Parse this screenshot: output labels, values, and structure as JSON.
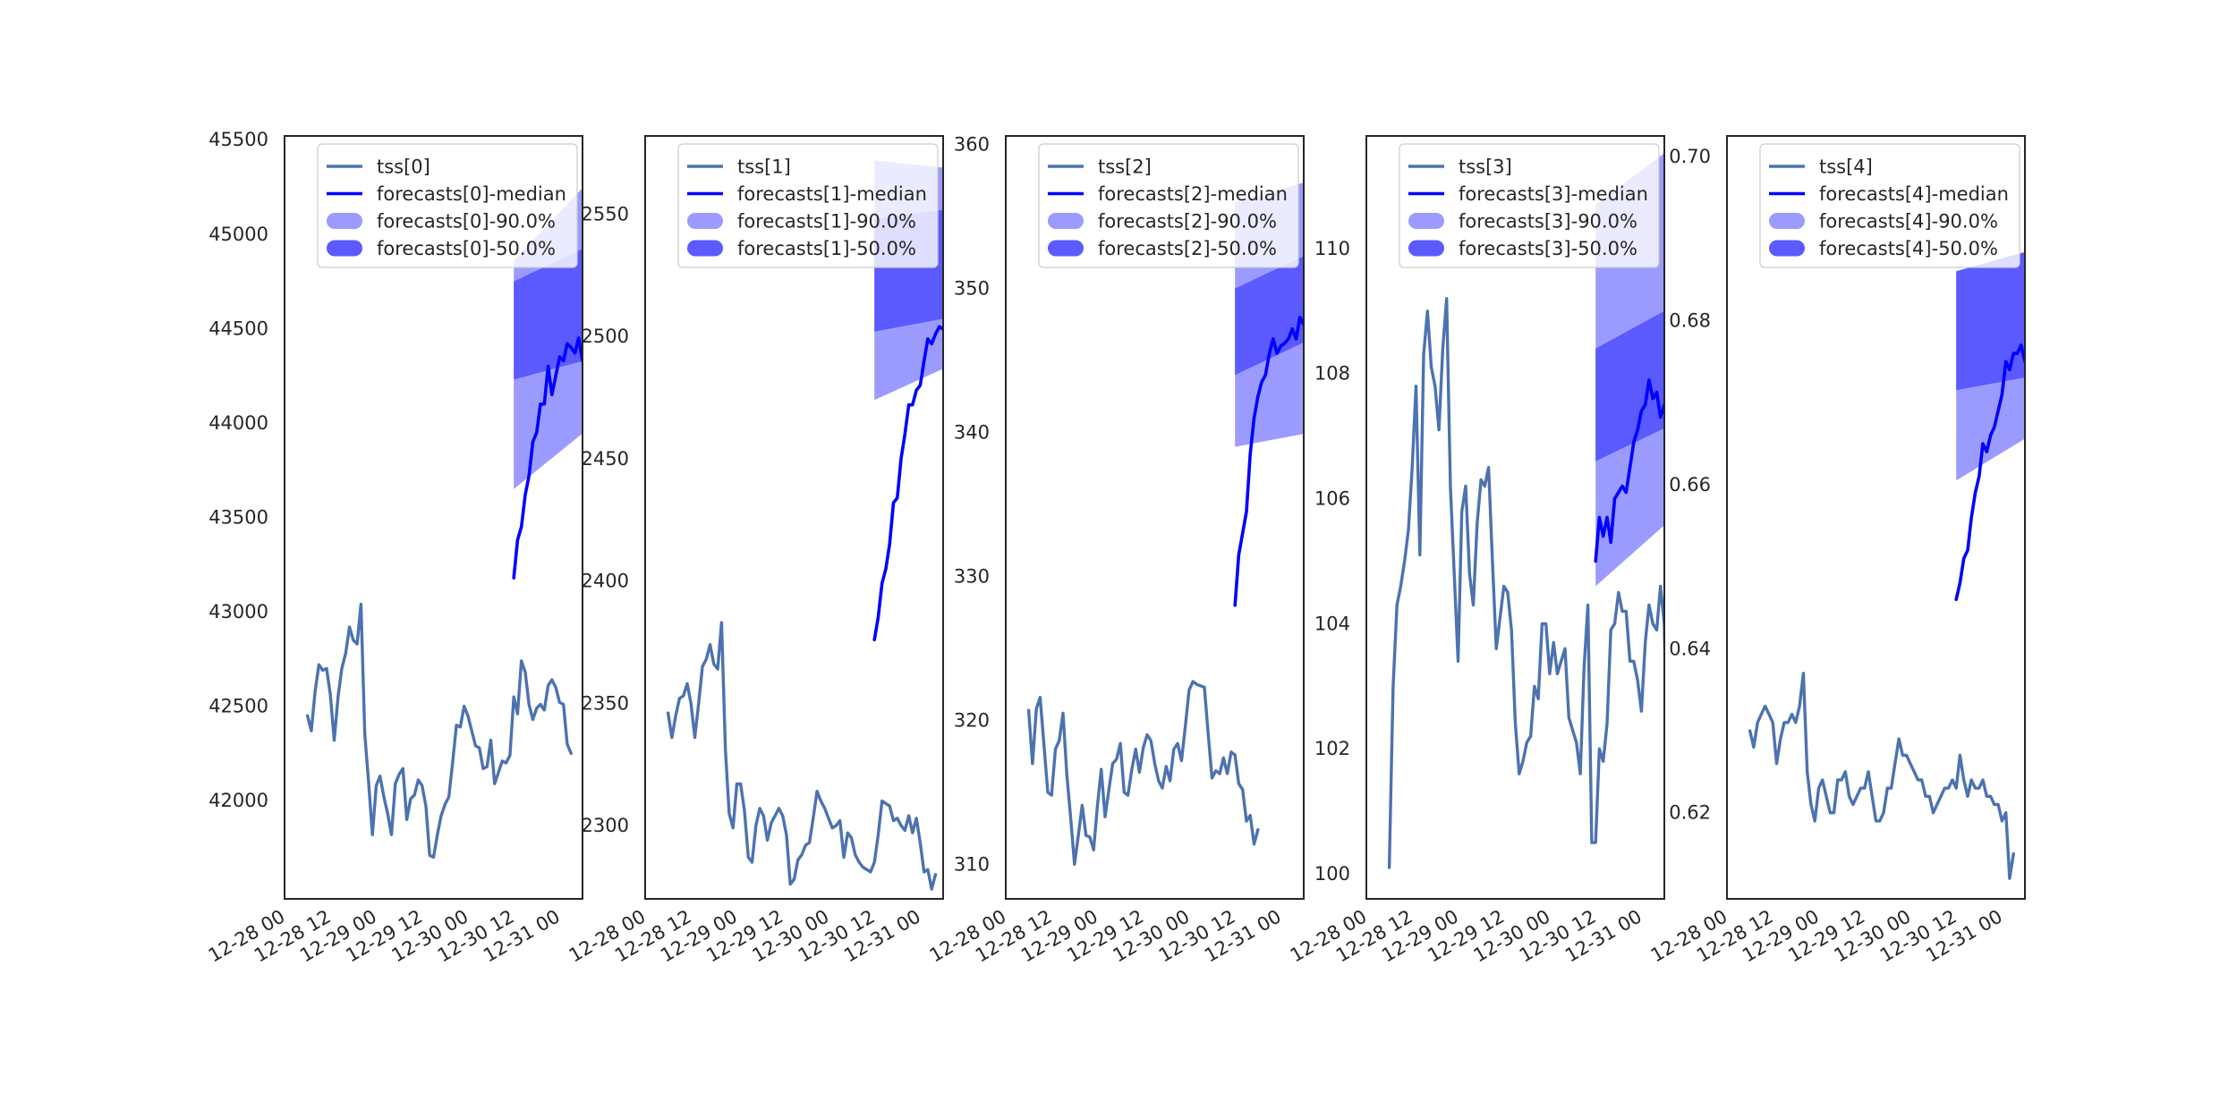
{
  "figure": {
    "title": "",
    "colors": {
      "history": "#4c72b0",
      "median": "#0000ff",
      "band_90": "#9b9bff",
      "band_50": "#5a5aff",
      "axes": "#262626",
      "tick_text": "#262626"
    }
  },
  "chart_data": [
    {
      "type": "line",
      "title": "",
      "xlabel": "",
      "ylabel": "",
      "grid": false,
      "legend_position": "top-center",
      "x_domain": [
        "2022-12-28 00:00",
        "2022-12-31 06:00"
      ],
      "x_ticks": [
        "12-28 00",
        "12-28 12",
        "12-29 00",
        "12-29 12",
        "12-30 00",
        "12-30 12",
        "12-31 00"
      ],
      "y_ticks": [
        42000,
        42500,
        43000,
        43500,
        44000,
        44500,
        45000,
        45500
      ],
      "ylim": [
        41480,
        45520
      ],
      "series": [
        {
          "name": "tss[0]",
          "x_start": "2022-12-28 06:00",
          "step_hours": 1,
          "values": [
            42450,
            42370,
            42580,
            42720,
            42690,
            42700,
            42560,
            42320,
            42550,
            42700,
            42780,
            42920,
            42850,
            42830,
            43040,
            42350,
            42100,
            41820,
            42080,
            42130,
            42020,
            41930,
            41820,
            42090,
            42140,
            42170,
            41900,
            42010,
            42030,
            42110,
            42080,
            41970,
            41710,
            41700,
            41820,
            41920,
            41980,
            42020,
            42200,
            42400,
            42390,
            42500,
            42450,
            42370,
            42290,
            42280,
            42170,
            42180,
            42320,
            42090,
            42150,
            42210,
            42200,
            42240,
            42550,
            42460,
            42740,
            42680,
            42510,
            42430,
            42490,
            42510,
            42480,
            42610,
            42640,
            42600,
            42520,
            42510,
            42300,
            42250
          ]
        },
        {
          "name": "forecasts[0]-median",
          "x_start": "2022-12-30 12:00",
          "step_hours": 1,
          "values": [
            43180,
            43380,
            43450,
            43620,
            43720,
            43900,
            43950,
            44100,
            44100,
            44300,
            44150,
            44250,
            44350,
            44330,
            44420,
            44400,
            44370,
            44450,
            44330,
            44440,
            44410,
            44560,
            44700
          ]
        }
      ],
      "bands": [
        {
          "name": "forecasts[0]-90.0%",
          "x_start": "2022-12-30 12:00",
          "x_end": "2022-12-31 10:00",
          "lower": [
            43650,
            44010
          ],
          "upper": [
            44860,
            45330
          ]
        },
        {
          "name": "forecasts[0]-50.0%",
          "x_start": "2022-12-30 12:00",
          "x_end": "2022-12-31 10:00",
          "lower": [
            44230,
            44350
          ],
          "upper": [
            44750,
            44960
          ]
        }
      ],
      "legend": [
        "tss[0]",
        "forecasts[0]-median",
        "forecasts[0]-90.0%",
        "forecasts[0]-50.0%"
      ]
    },
    {
      "type": "line",
      "title": "",
      "xlabel": "",
      "ylabel": "",
      "grid": false,
      "legend_position": "top-center",
      "x_domain": [
        "2022-12-28 00:00",
        "2022-12-31 06:00"
      ],
      "x_ticks": [
        "12-28 00",
        "12-28 12",
        "12-29 00",
        "12-29 12",
        "12-30 00",
        "12-30 12",
        "12-31 00"
      ],
      "y_ticks": [
        2300,
        2350,
        2400,
        2450,
        2500,
        2550
      ],
      "ylim": [
        2270,
        2582
      ],
      "series": [
        {
          "name": "tss[1]",
          "x_start": "2022-12-28 06:00",
          "step_hours": 1,
          "values": [
            2346,
            2336,
            2345,
            2352,
            2353,
            2358,
            2350,
            2336,
            2350,
            2365,
            2368,
            2374,
            2366,
            2364,
            2383,
            2331,
            2305,
            2299,
            2317,
            2317,
            2306,
            2287,
            2285,
            2300,
            2307,
            2304,
            2294,
            2301,
            2304,
            2307,
            2304,
            2296,
            2276,
            2278,
            2286,
            2288,
            2292,
            2293,
            2303,
            2314,
            2310,
            2307,
            2303,
            2299,
            2300,
            2302,
            2287,
            2297,
            2295,
            2288,
            2285,
            2283,
            2282,
            2281,
            2285,
            2296,
            2310,
            2309,
            2308,
            2302,
            2303,
            2300,
            2298,
            2304,
            2297,
            2303,
            2293,
            2281,
            2282,
            2274,
            2280
          ]
        },
        {
          "name": "forecasts[1]-median",
          "x_start": "2022-12-30 12:00",
          "step_hours": 1,
          "values": [
            2376,
            2385,
            2399,
            2405,
            2415,
            2432,
            2434,
            2450,
            2460,
            2472,
            2472,
            2478,
            2480,
            2490,
            2499,
            2497,
            2501,
            2504,
            2503,
            2510,
            2507,
            2513,
            2514,
            2517,
            2523
          ]
        }
      ],
      "bands": [
        {
          "name": "forecasts[1]-90.0%",
          "x_start": "2022-12-30 12:00",
          "x_end": "2022-12-31 12:00",
          "lower": [
            2474,
            2491
          ],
          "upper": [
            2572,
            2568
          ]
        },
        {
          "name": "forecasts[1]-50.0%",
          "x_start": "2022-12-30 12:00",
          "x_end": "2022-12-31 12:00",
          "lower": [
            2502,
            2509
          ],
          "upper": [
            2548,
            2553
          ]
        }
      ],
      "legend": [
        "tss[1]",
        "forecasts[1]-median",
        "forecasts[1]-90.0%",
        "forecasts[1]-50.0%"
      ]
    },
    {
      "type": "line",
      "title": "",
      "xlabel": "",
      "ylabel": "",
      "grid": false,
      "legend_position": "top-center",
      "x_domain": [
        "2022-12-28 00:00",
        "2022-12-31 06:00"
      ],
      "x_ticks": [
        "12-28 00",
        "12-28 12",
        "12-29 00",
        "12-29 12",
        "12-30 00",
        "12-30 12",
        "12-31 00"
      ],
      "y_ticks": [
        310,
        320,
        330,
        340,
        350,
        360
      ],
      "ylim": [
        307.6,
        360.6
      ],
      "series": [
        {
          "name": "tss[2]",
          "x_start": "2022-12-28 06:00",
          "step_hours": 1,
          "values": [
            320.7,
            317.0,
            320.8,
            321.6,
            318.3,
            315.0,
            314.8,
            318.0,
            318.6,
            320.5,
            316.2,
            313.2,
            310.0,
            312.0,
            314.1,
            312.0,
            311.9,
            311.0,
            314.1,
            316.6,
            313.3,
            315.2,
            317.0,
            317.3,
            318.4,
            315.0,
            314.8,
            316.6,
            318.0,
            316.4,
            318.1,
            319.0,
            318.6,
            317.0,
            315.8,
            315.3,
            316.8,
            315.8,
            318.0,
            318.4,
            317.2,
            319.6,
            322.1,
            322.7,
            322.5,
            322.4,
            322.3,
            319.0,
            316.0,
            316.5,
            316.3,
            317.4,
            316.3,
            317.8,
            317.6,
            315.6,
            315.2,
            313.0,
            313.4,
            311.4,
            312.4
          ]
        },
        {
          "name": "forecasts[2]-median",
          "x_start": "2022-12-30 12:00",
          "step_hours": 1,
          "values": [
            328.0,
            331.5,
            333.0,
            334.5,
            338.5,
            341.0,
            342.5,
            343.5,
            344.0,
            345.5,
            346.5,
            345.5,
            346.0,
            346.2,
            346.5,
            347.2,
            346.5,
            348.0,
            347.5,
            350.5,
            350.0
          ]
        }
      ],
      "bands": [
        {
          "name": "forecasts[2]-90.0%",
          "x_start": "2022-12-30 12:00",
          "x_end": "2022-12-31 08:00",
          "lower": [
            339.0,
            340.0
          ],
          "upper": [
            356.0,
            357.5
          ]
        },
        {
          "name": "forecasts[2]-50.0%",
          "x_start": "2022-12-30 12:00",
          "x_end": "2022-12-31 08:00",
          "lower": [
            344.0,
            346.5
          ],
          "upper": [
            350.0,
            352.5
          ]
        }
      ],
      "legend": [
        "tss[2]",
        "forecasts[2]-median",
        "forecasts[2]-90.0%",
        "forecasts[2]-50.0%"
      ]
    },
    {
      "type": "line",
      "title": "",
      "xlabel": "",
      "ylabel": "",
      "grid": false,
      "legend_position": "top-center",
      "x_domain": [
        "2022-12-28 00:00",
        "2022-12-31 06:00"
      ],
      "x_ticks": [
        "12-28 00",
        "12-28 12",
        "12-29 00",
        "12-29 12",
        "12-30 00",
        "12-30 12",
        "12-31 00"
      ],
      "y_ticks": [
        100,
        102,
        104,
        106,
        108,
        110
      ],
      "ylim": [
        99.6,
        111.8
      ],
      "series": [
        {
          "name": "tss[3]",
          "x_start": "2022-12-28 06:00",
          "step_hours": 1,
          "values": [
            100.1,
            103.0,
            104.3,
            104.6,
            105.0,
            105.5,
            106.5,
            107.8,
            105.1,
            108.3,
            109.0,
            108.1,
            107.8,
            107.1,
            108.4,
            109.2,
            106.2,
            104.8,
            103.4,
            105.8,
            106.2,
            104.8,
            104.3,
            105.6,
            106.3,
            106.2,
            106.5,
            105.0,
            103.6,
            104.1,
            104.6,
            104.5,
            103.9,
            102.4,
            101.6,
            101.8,
            102.1,
            102.2,
            103.0,
            102.8,
            104.0,
            104.0,
            103.2,
            103.7,
            103.2,
            103.4,
            103.6,
            102.5,
            102.3,
            102.1,
            101.6,
            103.3,
            104.3,
            100.5,
            100.5,
            102.0,
            101.8,
            102.4,
            103.9,
            104.0,
            104.5,
            104.2,
            104.2,
            103.4,
            103.4,
            103.1,
            102.6,
            103.7,
            104.3,
            104.0,
            103.9,
            104.6,
            104.0,
            100.8,
            101.4
          ]
        },
        {
          "name": "forecasts[3]-median",
          "x_start": "2022-12-30 12:00",
          "step_hours": 1,
          "values": [
            105.0,
            105.7,
            105.4,
            105.7,
            105.3,
            106.0,
            106.1,
            106.2,
            106.1,
            106.5,
            106.9,
            107.1,
            107.4,
            107.5,
            107.9,
            107.6,
            107.7,
            107.3,
            107.5,
            107.1,
            107.2,
            107.1,
            107.3,
            107.6,
            108.3
          ]
        }
      ],
      "bands": [
        {
          "name": "forecasts[3]-90.0%",
          "x_start": "2022-12-30 12:00",
          "x_end": "2022-12-31 12:00",
          "lower": [
            104.6,
            105.9
          ],
          "upper": [
            110.7,
            111.8
          ]
        },
        {
          "name": "forecasts[3]-50.0%",
          "x_start": "2022-12-30 12:00",
          "x_end": "2022-12-31 12:00",
          "lower": [
            106.6,
            107.3
          ],
          "upper": [
            108.4,
            109.2
          ]
        }
      ],
      "legend": [
        "tss[3]",
        "forecasts[3]-median",
        "forecasts[3]-90.0%",
        "forecasts[3]-50.0%"
      ]
    },
    {
      "type": "line",
      "title": "",
      "xlabel": "",
      "ylabel": "",
      "grid": false,
      "legend_position": "top-center",
      "x_domain": [
        "2022-12-28 00:00",
        "2022-12-31 06:00"
      ],
      "x_ticks": [
        "12-28 00",
        "12-28 12",
        "12-29 00",
        "12-29 12",
        "12-30 00",
        "12-30 12",
        "12-31 00"
      ],
      "y_ticks": [
        0.62,
        0.64,
        0.66,
        0.68,
        0.7
      ],
      "ylim": [
        0.6095,
        0.7025
      ],
      "series": [
        {
          "name": "tss[4]",
          "x_start": "2022-12-28 06:00",
          "step_hours": 1,
          "values": [
            0.63,
            0.628,
            0.631,
            0.632,
            0.633,
            0.632,
            0.631,
            0.626,
            0.629,
            0.631,
            0.631,
            0.632,
            0.631,
            0.633,
            0.637,
            0.625,
            0.621,
            0.619,
            0.623,
            0.624,
            0.622,
            0.62,
            0.62,
            0.624,
            0.624,
            0.625,
            0.622,
            0.621,
            0.622,
            0.623,
            0.623,
            0.625,
            0.622,
            0.619,
            0.619,
            0.62,
            0.623,
            0.623,
            0.626,
            0.629,
            0.627,
            0.627,
            0.626,
            0.625,
            0.624,
            0.624,
            0.622,
            0.622,
            0.62,
            0.621,
            0.622,
            0.623,
            0.623,
            0.624,
            0.623,
            0.627,
            0.624,
            0.622,
            0.624,
            0.623,
            0.623,
            0.624,
            0.622,
            0.622,
            0.621,
            0.621,
            0.619,
            0.62,
            0.612,
            0.615
          ]
        },
        {
          "name": "forecasts[4]-median",
          "x_start": "2022-12-30 12:00",
          "step_hours": 1,
          "values": [
            0.646,
            0.648,
            0.651,
            0.652,
            0.656,
            0.659,
            0.661,
            0.665,
            0.664,
            0.666,
            0.667,
            0.669,
            0.671,
            0.675,
            0.674,
            0.676,
            0.676,
            0.677,
            0.675,
            0.677,
            0.678,
            0.676,
            0.682,
            0.682
          ]
        }
      ],
      "bands": [
        {
          "name": "forecasts[4]-90.0%",
          "x_start": "2022-12-30 12:00",
          "x_end": "2022-12-31 11:00",
          "lower": [
            0.6605,
            0.667
          ],
          "upper": [
            0.6855,
            0.687
          ]
        },
        {
          "name": "forecasts[4]-50.0%",
          "x_start": "2022-12-30 12:00",
          "x_end": "2022-12-31 11:00",
          "lower": [
            0.6715,
            0.6735
          ],
          "upper": [
            0.686,
            0.689
          ]
        }
      ],
      "legend": [
        "tss[4]",
        "forecasts[4]-median",
        "forecasts[4]-90.0%",
        "forecasts[4]-50.0%"
      ]
    }
  ]
}
